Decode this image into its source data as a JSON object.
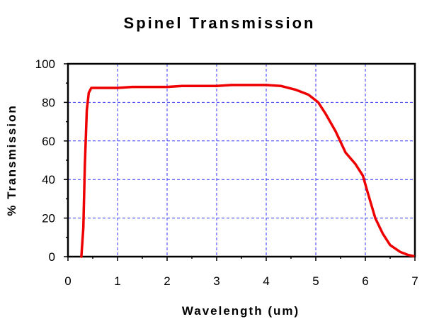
{
  "chart_data": {
    "type": "line",
    "title": "Spinel Transmission",
    "xlabel": "Wavelength (um)",
    "ylabel": "% Transmission",
    "xlim": [
      0,
      7
    ],
    "ylim": [
      0,
      100
    ],
    "x_ticks": [
      "0",
      "1",
      "2",
      "3",
      "4",
      "5",
      "6",
      "7"
    ],
    "y_ticks": [
      "0",
      "20",
      "40",
      "60",
      "80",
      "100"
    ],
    "x_tick_values": [
      0,
      1,
      2,
      3,
      4,
      5,
      6,
      7
    ],
    "y_tick_values": [
      0,
      20,
      40,
      60,
      80,
      100
    ],
    "grid": true,
    "series_color": "#ee0000",
    "grid_color": "#3333ff",
    "series": [
      {
        "x": [
          0.27,
          0.31,
          0.34,
          0.38,
          0.42,
          0.47,
          0.55,
          0.7,
          1.0,
          1.3,
          1.7,
          2.0,
          2.3,
          3.0,
          3.3,
          3.6,
          4.0,
          4.3,
          4.6,
          4.85,
          5.05,
          5.2,
          5.4,
          5.6,
          5.8,
          5.95,
          6.05,
          6.2,
          6.35,
          6.5,
          6.7,
          6.85,
          6.97
        ],
        "y": [
          0,
          15,
          47,
          76,
          85,
          87.5,
          87.5,
          87.5,
          87.5,
          88,
          88,
          88,
          88.5,
          88.5,
          89,
          89,
          89,
          88.5,
          86.5,
          84,
          80,
          74,
          65,
          54,
          48,
          42,
          33,
          20,
          12,
          6,
          2.5,
          1,
          0.3
        ]
      }
    ]
  }
}
